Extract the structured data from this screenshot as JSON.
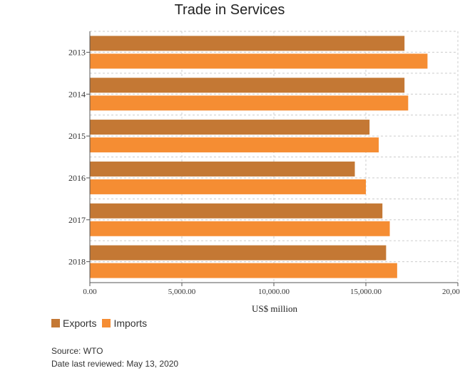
{
  "chart_data": {
    "type": "bar",
    "orientation": "horizontal",
    "title": "Trade in Services",
    "xlabel": "US$ million",
    "ylabel": "",
    "categories": [
      "2013",
      "2014",
      "2015",
      "2016",
      "2017",
      "2018"
    ],
    "series": [
      {
        "name": "Exports",
        "color": "#c47834",
        "values": [
          17100,
          17100,
          15200,
          14400,
          15900,
          16100
        ]
      },
      {
        "name": "Imports",
        "color": "#f58d33",
        "values": [
          18350,
          17300,
          15700,
          15000,
          16300,
          16700
        ]
      }
    ],
    "xlim": [
      0,
      20000
    ],
    "xticks": [
      "0.00",
      "5,000.00",
      "10,000.00",
      "15,000.00",
      "20,000.00"
    ],
    "grid": true,
    "legend": "bottom-left"
  },
  "footer": {
    "source": "Source: WTO",
    "reviewed": "Date last reviewed: May 13, 2020"
  }
}
